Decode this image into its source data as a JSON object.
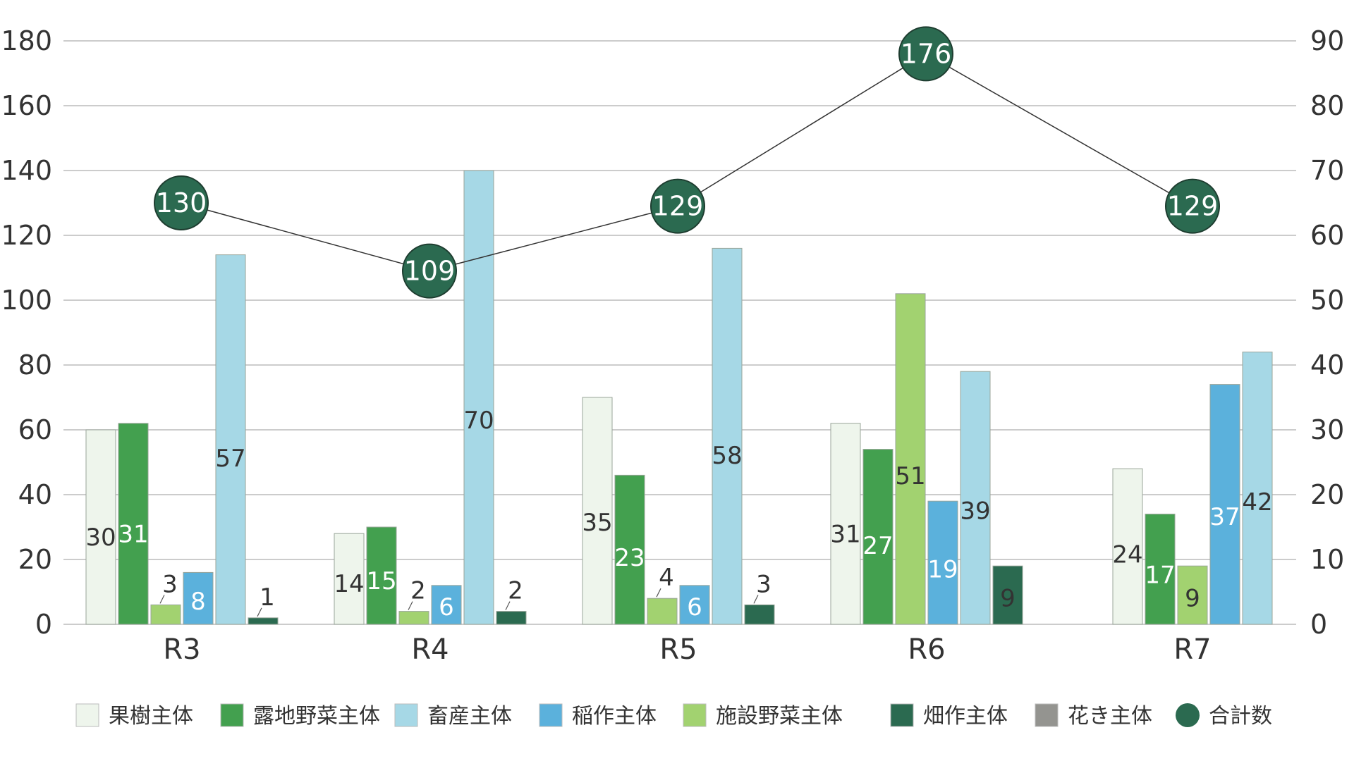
{
  "chart_data": {
    "type": "bar",
    "categories": [
      "R3",
      "R4",
      "R5",
      "R6",
      "R7"
    ],
    "left_axis": {
      "ylim": [
        0,
        180
      ],
      "ticks": [
        "0",
        "20",
        "40",
        "60",
        "80",
        "100",
        "120",
        "140",
        "160",
        "180"
      ]
    },
    "right_axis": {
      "ylim": [
        0,
        90
      ],
      "ticks": [
        "0",
        "10",
        "20",
        "30",
        "40",
        "50",
        "60",
        "70",
        "80",
        "90"
      ]
    },
    "grid": true,
    "legend_position": "bottom",
    "series": [
      {
        "name": "果樹主体",
        "color": "#eef5ec",
        "label_color": "#333333",
        "values": [
          30,
          14,
          35,
          31,
          24
        ]
      },
      {
        "name": "露地野菜主体",
        "color": "#43a04f",
        "label_color": "#ffffff",
        "values": [
          31,
          15,
          23,
          27,
          17
        ]
      },
      {
        "name": "施設野菜主体",
        "color": "#a2d270",
        "label_color": "#333333",
        "values": [
          3,
          2,
          4,
          51,
          9
        ]
      },
      {
        "name": "稲作主体",
        "color": "#5bb1dc",
        "label_color": "#ffffff",
        "values": [
          8,
          6,
          6,
          19,
          37
        ]
      },
      {
        "name": "畜産主体",
        "color": "#a6d8e6",
        "label_color": "#333333",
        "values": [
          57,
          70,
          58,
          39,
          42
        ]
      },
      {
        "name": "畑作主体",
        "color": "#2b6a50",
        "label_color": "#333333",
        "values": [
          1,
          2,
          3,
          9,
          null
        ]
      },
      {
        "name": "花き主体",
        "color": "#949490",
        "label_color": "#333333",
        "values": [
          null,
          null,
          null,
          null,
          null
        ]
      }
    ],
    "total": {
      "name": "合計数",
      "color": "#2b6a50",
      "values": [
        130,
        109,
        129,
        176,
        129
      ]
    },
    "legend_order": [
      "果樹主体",
      "露地野菜主体",
      "畜産主体",
      "稲作主体",
      "施設野菜主体",
      "畑作主体",
      "花き主体",
      "合計数"
    ]
  }
}
